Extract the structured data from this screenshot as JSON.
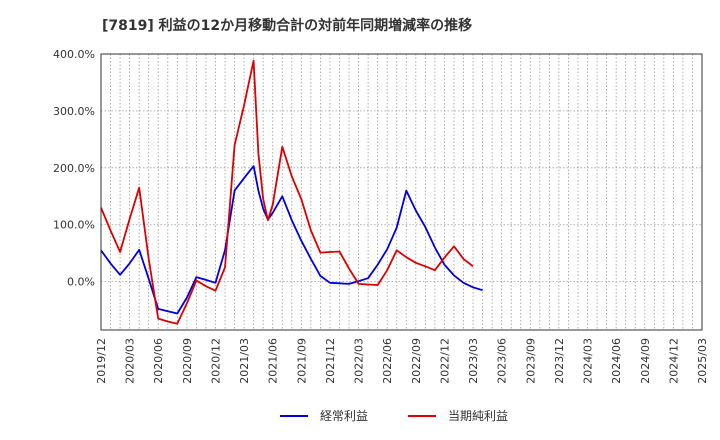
{
  "chart_data": {
    "type": "line",
    "title": "[7819]  利益の12か月移動合計の対前年同期増減率の推移",
    "x_tick_labels": [
      "2019/12",
      "2020/03",
      "2020/06",
      "2020/09",
      "2020/12",
      "2021/03",
      "2021/06",
      "2021/09",
      "2021/12",
      "2022/03",
      "2022/06",
      "2022/09",
      "2022/12",
      "2023/03",
      "2023/06",
      "2023/09",
      "2023/12",
      "2024/03",
      "2024/06",
      "2024/09",
      "2024/12",
      "2025/03"
    ],
    "y_tick_values": [
      0,
      100,
      200,
      300,
      400
    ],
    "y_tick_labels": [
      "0.0%",
      "100.0%",
      "200.0%",
      "300.0%",
      "400.0%"
    ],
    "ylim": [
      -85,
      400
    ],
    "grid": true,
    "legend_position": "bottom",
    "series": [
      {
        "name": "経常利益",
        "color": "#0000dd",
        "points": [
          [
            0,
            55
          ],
          [
            1,
            32
          ],
          [
            2,
            12
          ],
          [
            3,
            32
          ],
          [
            4,
            56
          ],
          [
            5,
            5
          ],
          [
            6,
            -48
          ],
          [
            7,
            -52
          ],
          [
            8,
            -56
          ],
          [
            9,
            -28
          ],
          [
            10,
            8
          ],
          [
            11,
            3
          ],
          [
            12,
            -2
          ],
          [
            13,
            55
          ],
          [
            14,
            160
          ],
          [
            15,
            182
          ],
          [
            16,
            203
          ],
          [
            16.5,
            160
          ],
          [
            17,
            128
          ],
          [
            17.5,
            109
          ],
          [
            18,
            121
          ],
          [
            19,
            150
          ],
          [
            20,
            108
          ],
          [
            21,
            72
          ],
          [
            22,
            40
          ],
          [
            23,
            10
          ],
          [
            24,
            -2
          ],
          [
            25,
            -3
          ],
          [
            26,
            -4
          ],
          [
            27,
            1
          ],
          [
            28,
            6
          ],
          [
            29,
            30
          ],
          [
            30,
            57
          ],
          [
            31,
            95
          ],
          [
            32,
            160
          ],
          [
            33,
            125
          ],
          [
            34,
            96
          ],
          [
            35,
            60
          ],
          [
            36,
            30
          ],
          [
            37,
            11
          ],
          [
            38,
            -2
          ],
          [
            39,
            -10
          ],
          [
            40,
            -15
          ]
        ]
      },
      {
        "name": "当期純利益",
        "color": "#dd0000",
        "points": [
          [
            0,
            130
          ],
          [
            1,
            90
          ],
          [
            2,
            52
          ],
          [
            3,
            110
          ],
          [
            4,
            165
          ],
          [
            5,
            40
          ],
          [
            6,
            -65
          ],
          [
            7,
            -70
          ],
          [
            8,
            -74
          ],
          [
            9,
            -38
          ],
          [
            10,
            2
          ],
          [
            11,
            -8
          ],
          [
            12,
            -16
          ],
          [
            13,
            25
          ],
          [
            14,
            240
          ],
          [
            15,
            310
          ],
          [
            15.5,
            350
          ],
          [
            16,
            388
          ],
          [
            16.5,
            225
          ],
          [
            17,
            145
          ],
          [
            17.5,
            108
          ],
          [
            18,
            135
          ],
          [
            19,
            237
          ],
          [
            20,
            185
          ],
          [
            21,
            145
          ],
          [
            22,
            90
          ],
          [
            23,
            51
          ],
          [
            24,
            52
          ],
          [
            25,
            53
          ],
          [
            26,
            23
          ],
          [
            27,
            -4
          ],
          [
            28,
            -5
          ],
          [
            29,
            -6
          ],
          [
            30,
            20
          ],
          [
            31,
            55
          ],
          [
            32,
            43
          ],
          [
            33,
            33
          ],
          [
            34,
            27
          ],
          [
            35,
            20
          ],
          [
            36,
            42
          ],
          [
            37,
            62
          ],
          [
            38,
            40
          ],
          [
            39,
            27
          ]
        ]
      }
    ]
  },
  "colors": {
    "grid": "#999999",
    "axis": "#333333",
    "background": "#ffffff"
  }
}
